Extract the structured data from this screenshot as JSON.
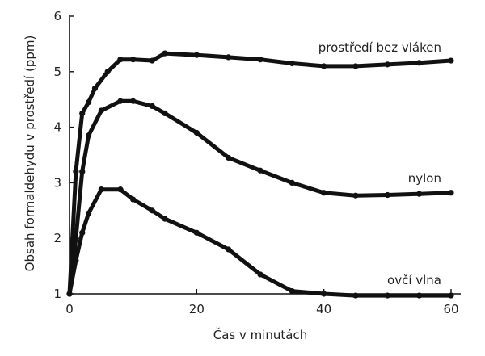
{
  "chart_data": {
    "type": "line",
    "title": "",
    "xlabel": "Čas v minutách",
    "ylabel": "Obsah formaldehydu v prostředí (ppm)",
    "xlim": [
      0,
      60
    ],
    "ylim": [
      1,
      6
    ],
    "x_ticks": [
      0,
      20,
      40,
      60
    ],
    "y_ticks": [
      1,
      2,
      3,
      4,
      5,
      6
    ],
    "grid": false,
    "legend": "inline labels at right",
    "line_color": "#111111",
    "series": [
      {
        "name": "prostředí bez vláken",
        "x": [
          0,
          1,
          2,
          3,
          4,
          6,
          8,
          10,
          13,
          15,
          20,
          25,
          30,
          35,
          40,
          45,
          50,
          55,
          60
        ],
        "y": [
          1.0,
          3.2,
          4.25,
          4.45,
          4.7,
          5.0,
          5.22,
          5.22,
          5.2,
          5.33,
          5.3,
          5.26,
          5.22,
          5.15,
          5.1,
          5.1,
          5.13,
          5.16,
          5.2
        ]
      },
      {
        "name": "nylon",
        "x": [
          0,
          1,
          2,
          3,
          5,
          8,
          10,
          13,
          15,
          20,
          25,
          30,
          35,
          40,
          45,
          50,
          55,
          60
        ],
        "y": [
          1.0,
          2.0,
          3.2,
          3.85,
          4.3,
          4.47,
          4.47,
          4.38,
          4.25,
          3.9,
          3.45,
          3.22,
          3.0,
          2.82,
          2.77,
          2.78,
          2.8,
          2.82
        ]
      },
      {
        "name": "ovčí vlna",
        "x": [
          0,
          1,
          2,
          3,
          5,
          8,
          10,
          13,
          15,
          20,
          25,
          30,
          35,
          40,
          45,
          50,
          55,
          60
        ],
        "y": [
          1.0,
          1.6,
          2.1,
          2.45,
          2.88,
          2.88,
          2.7,
          2.5,
          2.35,
          2.1,
          1.8,
          1.35,
          1.05,
          1.0,
          0.97,
          0.97,
          0.97,
          0.97
        ]
      }
    ]
  }
}
